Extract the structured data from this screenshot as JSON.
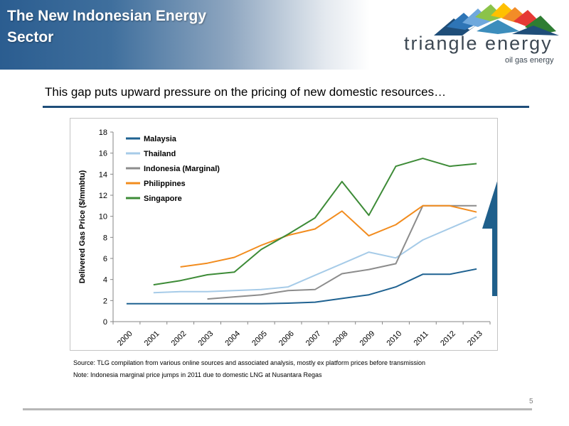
{
  "header": {
    "title": "The New Indonesian Energy Sector"
  },
  "logo": {
    "name": "triangle energy",
    "tagline": "oil gas energy",
    "colors": [
      "#1f4e79",
      "#6fa8dc",
      "#8bc34a",
      "#ffc000",
      "#f28c28",
      "#e53935",
      "#2e7d32"
    ]
  },
  "subtitle": "This gap puts upward pressure on the pricing of new domestic resources…",
  "notes": {
    "source": "Source: TLG compilation from various online sources and associated analysis, mostly ex platform prices before transmission",
    "note": "Note: Indonesia marginal price jumps in 2011 due to domestic LNG at Nusantara Regas"
  },
  "page_number": "5",
  "arrow": {
    "color": "#1f5f8b",
    "icon": "up-arrow-icon"
  },
  "chart_data": {
    "type": "line",
    "title": "",
    "xlabel": "",
    "ylabel": "Delivered Gas Price ($/mmbtu)",
    "ylim": [
      0,
      18
    ],
    "yticks": [
      0,
      2,
      4,
      6,
      8,
      10,
      12,
      14,
      16,
      18
    ],
    "grid": false,
    "legend_position": "top-left",
    "categories": [
      "2000",
      "2001",
      "2002",
      "2003",
      "2004",
      "2005",
      "2006",
      "2007",
      "2008",
      "2009",
      "2010",
      "2011",
      "2012",
      "2013"
    ],
    "series": [
      {
        "name": "Malaysia",
        "color": "#1f6291",
        "values": [
          1.7,
          1.7,
          1.7,
          1.7,
          1.7,
          1.7,
          1.75,
          1.85,
          2.2,
          2.55,
          3.3,
          4.5,
          4.5,
          5.0
        ]
      },
      {
        "name": "Thailand",
        "color": "#a6cbe8",
        "values": [
          null,
          2.75,
          2.85,
          2.85,
          2.95,
          3.05,
          3.3,
          4.4,
          5.5,
          6.6,
          6.05,
          7.75,
          8.85,
          9.95
        ]
      },
      {
        "name": "Indonesia (Marginal)",
        "color": "#8c8c8c",
        "values": [
          null,
          null,
          null,
          2.15,
          2.35,
          2.55,
          2.95,
          3.05,
          4.55,
          4.95,
          5.5,
          11.0,
          11.0,
          11.0
        ]
      },
      {
        "name": "Philippines",
        "color": "#f28c1e",
        "values": [
          null,
          null,
          5.2,
          5.55,
          6.1,
          7.25,
          8.2,
          8.8,
          10.5,
          8.15,
          9.2,
          11.0,
          11.0,
          10.4
        ]
      },
      {
        "name": "Singapore",
        "color": "#3d8b37",
        "values": [
          null,
          3.5,
          3.9,
          4.45,
          4.7,
          6.85,
          8.3,
          9.85,
          13.3,
          10.1,
          14.75,
          15.5,
          14.75,
          15.0
        ]
      }
    ]
  }
}
